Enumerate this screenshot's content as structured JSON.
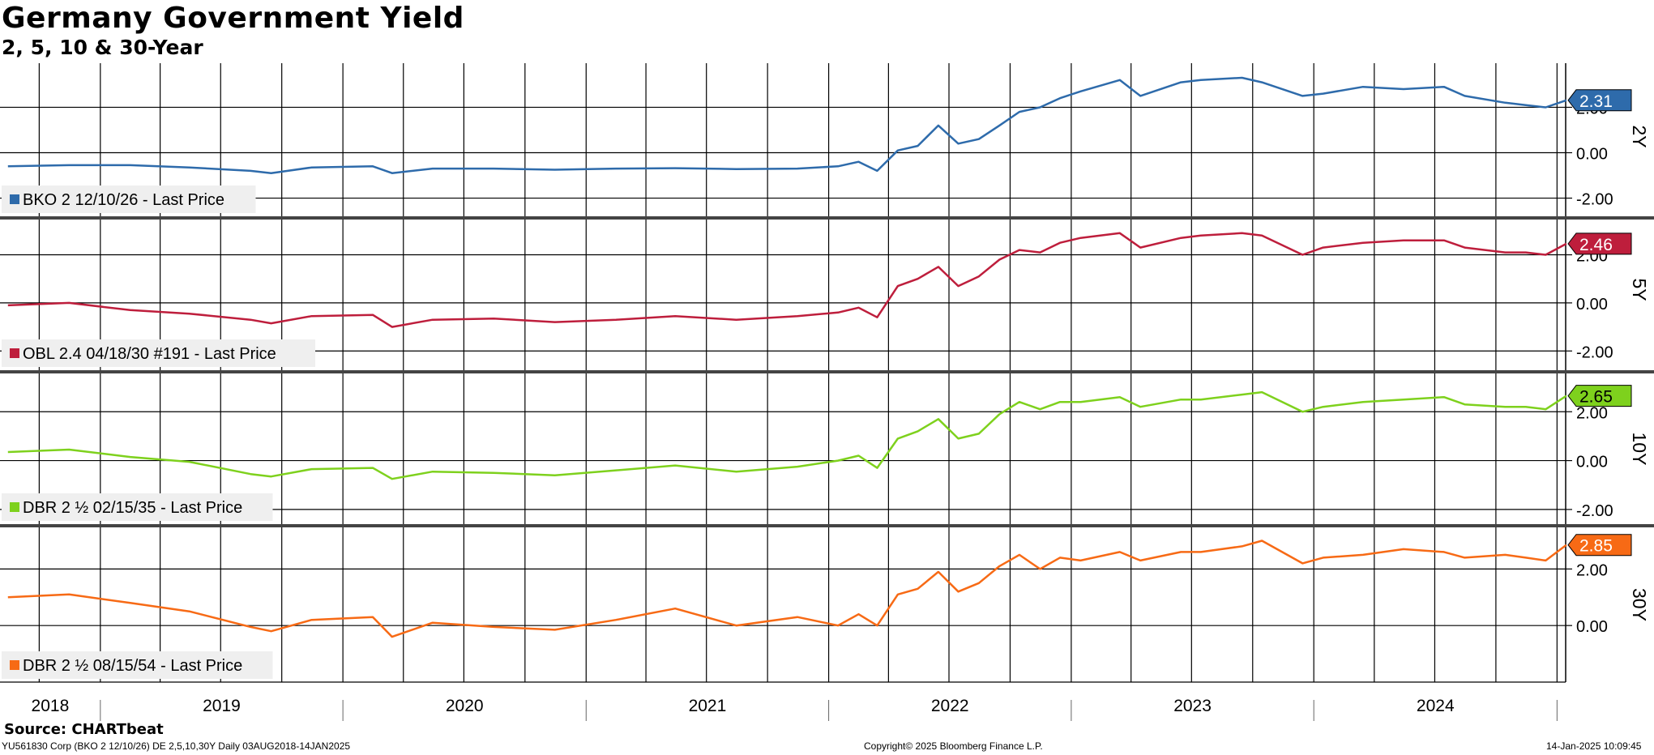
{
  "title": "Germany Government Yield",
  "subtitle": "2, 5, 10 & 30-Year",
  "source": "Source: CHARTbeat",
  "footer": {
    "left": "YU561830 Corp (BKO 2 12/10/26) DE 2,5,10,30Y  Daily 03AUG2018-14JAN2025",
    "center": "Copyright© 2025 Bloomberg Finance L.P.",
    "right": "14-Jan-2025 10:09:45"
  },
  "chart_data": {
    "type": "line",
    "x_range": [
      "2018-08-03",
      "2025-01-14"
    ],
    "x_tick_labels": [
      "2018",
      "2019",
      "2020",
      "2021",
      "2022",
      "2023",
      "2024"
    ],
    "grid": true,
    "panels": [
      {
        "name": "2Y",
        "legend": "BKO 2 12/10/26 - Last Price",
        "color": "#2e6bab",
        "last_value": "2.31",
        "ylim": [
          -2.8,
          3.8
        ],
        "yticks": [
          "2.00",
          "0.00",
          "-2.00"
        ],
        "x": [
          "2018-08",
          "2018-11",
          "2019-02",
          "2019-05",
          "2019-08",
          "2019-09",
          "2019-11",
          "2020-02",
          "2020-03",
          "2020-05",
          "2020-08",
          "2020-11",
          "2021-02",
          "2021-05",
          "2021-08",
          "2021-11",
          "2022-01",
          "2022-02",
          "2022-03",
          "2022-04",
          "2022-05",
          "2022-06",
          "2022-07",
          "2022-08",
          "2022-09",
          "2022-10",
          "2022-11",
          "2022-12",
          "2023-01",
          "2023-03",
          "2023-04",
          "2023-06",
          "2023-07",
          "2023-09",
          "2023-10",
          "2023-12",
          "2024-01",
          "2024-03",
          "2024-05",
          "2024-07",
          "2024-08",
          "2024-10",
          "2024-11",
          "2024-12",
          "2025-01"
        ],
        "values": [
          -0.6,
          -0.55,
          -0.55,
          -0.65,
          -0.8,
          -0.9,
          -0.65,
          -0.6,
          -0.9,
          -0.7,
          -0.7,
          -0.75,
          -0.7,
          -0.68,
          -0.72,
          -0.7,
          -0.6,
          -0.4,
          -0.8,
          0.1,
          0.3,
          1.2,
          0.4,
          0.6,
          1.2,
          1.8,
          2.0,
          2.4,
          2.7,
          3.2,
          2.5,
          3.1,
          3.2,
          3.3,
          3.1,
          2.5,
          2.6,
          2.9,
          2.8,
          2.9,
          2.5,
          2.2,
          2.1,
          2.0,
          2.31
        ]
      },
      {
        "name": "5Y",
        "legend": "OBL 2.4 04/18/30 #191 - Last Price",
        "color": "#be1e3c",
        "last_value": "2.46",
        "ylim": [
          -2.8,
          3.5
        ],
        "yticks": [
          "2.00",
          "0.00",
          "-2.00"
        ],
        "x": [
          "2018-08",
          "2018-11",
          "2019-02",
          "2019-05",
          "2019-08",
          "2019-09",
          "2019-11",
          "2020-02",
          "2020-03",
          "2020-05",
          "2020-08",
          "2020-11",
          "2021-02",
          "2021-05",
          "2021-08",
          "2021-11",
          "2022-01",
          "2022-02",
          "2022-03",
          "2022-04",
          "2022-05",
          "2022-06",
          "2022-07",
          "2022-08",
          "2022-09",
          "2022-10",
          "2022-11",
          "2022-12",
          "2023-01",
          "2023-03",
          "2023-04",
          "2023-06",
          "2023-07",
          "2023-09",
          "2023-10",
          "2023-12",
          "2024-01",
          "2024-03",
          "2024-05",
          "2024-07",
          "2024-08",
          "2024-10",
          "2024-11",
          "2024-12",
          "2025-01"
        ],
        "values": [
          -0.1,
          0.0,
          -0.3,
          -0.45,
          -0.7,
          -0.85,
          -0.55,
          -0.5,
          -1.0,
          -0.7,
          -0.65,
          -0.8,
          -0.7,
          -0.55,
          -0.7,
          -0.55,
          -0.4,
          -0.2,
          -0.6,
          0.7,
          1.0,
          1.5,
          0.7,
          1.1,
          1.8,
          2.2,
          2.1,
          2.5,
          2.7,
          2.9,
          2.3,
          2.7,
          2.8,
          2.9,
          2.8,
          2.0,
          2.3,
          2.5,
          2.6,
          2.6,
          2.3,
          2.1,
          2.1,
          2.0,
          2.46
        ]
      },
      {
        "name": "10Y",
        "legend": "DBR 2 ½ 02/15/35 - Last Price",
        "color": "#7ed11d",
        "last_value": "2.65",
        "ylim": [
          -2.6,
          3.6
        ],
        "yticks": [
          "2.00",
          "0.00",
          "-2.00"
        ],
        "x": [
          "2018-08",
          "2018-11",
          "2019-02",
          "2019-05",
          "2019-08",
          "2019-09",
          "2019-11",
          "2020-02",
          "2020-03",
          "2020-05",
          "2020-08",
          "2020-11",
          "2021-02",
          "2021-05",
          "2021-08",
          "2021-11",
          "2022-01",
          "2022-02",
          "2022-03",
          "2022-04",
          "2022-05",
          "2022-06",
          "2022-07",
          "2022-08",
          "2022-09",
          "2022-10",
          "2022-11",
          "2022-12",
          "2023-01",
          "2023-03",
          "2023-04",
          "2023-06",
          "2023-07",
          "2023-09",
          "2023-10",
          "2023-12",
          "2024-01",
          "2024-03",
          "2024-05",
          "2024-07",
          "2024-08",
          "2024-10",
          "2024-11",
          "2024-12",
          "2025-01"
        ],
        "values": [
          0.35,
          0.45,
          0.15,
          -0.05,
          -0.55,
          -0.65,
          -0.35,
          -0.3,
          -0.75,
          -0.45,
          -0.5,
          -0.6,
          -0.4,
          -0.2,
          -0.45,
          -0.25,
          0.0,
          0.2,
          -0.3,
          0.9,
          1.2,
          1.7,
          0.9,
          1.1,
          1.9,
          2.4,
          2.1,
          2.4,
          2.4,
          2.6,
          2.2,
          2.5,
          2.5,
          2.7,
          2.8,
          2.0,
          2.2,
          2.4,
          2.5,
          2.6,
          2.3,
          2.2,
          2.2,
          2.1,
          2.65
        ]
      },
      {
        "name": "30Y",
        "legend": "DBR 2 ½ 08/15/54 - Last Price",
        "color": "#f76a15",
        "last_value": "2.85",
        "ylim": [
          -2.0,
          3.5
        ],
        "yticks": [
          "2.00",
          "0.00"
        ],
        "x": [
          "2018-08",
          "2018-11",
          "2019-02",
          "2019-05",
          "2019-08",
          "2019-09",
          "2019-11",
          "2020-02",
          "2020-03",
          "2020-05",
          "2020-08",
          "2020-11",
          "2021-02",
          "2021-05",
          "2021-08",
          "2021-11",
          "2022-01",
          "2022-02",
          "2022-03",
          "2022-04",
          "2022-05",
          "2022-06",
          "2022-07",
          "2022-08",
          "2022-09",
          "2022-10",
          "2022-11",
          "2022-12",
          "2023-01",
          "2023-03",
          "2023-04",
          "2023-06",
          "2023-07",
          "2023-09",
          "2023-10",
          "2023-12",
          "2024-01",
          "2024-03",
          "2024-05",
          "2024-07",
          "2024-08",
          "2024-10",
          "2024-11",
          "2024-12",
          "2025-01"
        ],
        "values": [
          1.0,
          1.1,
          0.8,
          0.5,
          -0.05,
          -0.2,
          0.2,
          0.3,
          -0.4,
          0.1,
          -0.05,
          -0.15,
          0.2,
          0.6,
          0.0,
          0.3,
          0.0,
          0.4,
          0.0,
          1.1,
          1.3,
          1.9,
          1.2,
          1.5,
          2.1,
          2.5,
          2.0,
          2.4,
          2.3,
          2.6,
          2.3,
          2.6,
          2.6,
          2.8,
          3.0,
          2.2,
          2.4,
          2.5,
          2.7,
          2.6,
          2.4,
          2.5,
          2.4,
          2.3,
          2.85
        ]
      }
    ]
  }
}
